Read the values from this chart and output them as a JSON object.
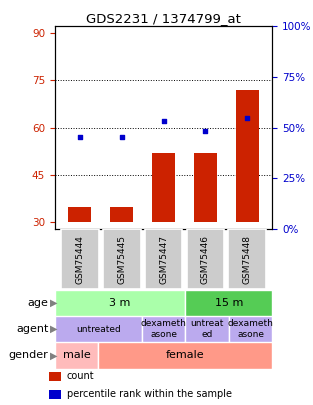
{
  "title": "GDS2231 / 1374799_at",
  "samples": [
    "GSM75444",
    "GSM75445",
    "GSM75447",
    "GSM75446",
    "GSM75448"
  ],
  "bar_values": [
    35,
    35,
    52,
    52,
    72
  ],
  "bar_bottom": 30,
  "dot_values": [
    57,
    57,
    62,
    59,
    63
  ],
  "ylim_left": [
    28,
    92
  ],
  "ylim_right": [
    0,
    100
  ],
  "yticks_left": [
    30,
    45,
    60,
    75,
    90
  ],
  "yticks_right": [
    0,
    25,
    50,
    75,
    100
  ],
  "ytick_labels_right": [
    "0%",
    "25%",
    "50%",
    "75%",
    "100%"
  ],
  "hlines": [
    45,
    60,
    75
  ],
  "bar_color": "#cc2200",
  "dot_color": "#0000cc",
  "bar_width": 0.55,
  "age_labels": [
    [
      "3 m",
      0,
      3
    ],
    [
      "15 m",
      3,
      5
    ]
  ],
  "age_colors": [
    "#aaffaa",
    "#55cc55"
  ],
  "agent_labels": [
    [
      "untreated",
      0,
      2
    ],
    [
      "dexameth\nasone",
      2,
      3
    ],
    [
      "untreat\ned",
      3,
      4
    ],
    [
      "dexameth\nasone",
      4,
      5
    ]
  ],
  "agent_color": "#bbaaee",
  "gender_labels": [
    [
      "male",
      0,
      1
    ],
    [
      "female",
      1,
      5
    ]
  ],
  "gender_colors": [
    "#ffbbbb",
    "#ff9988"
  ],
  "tick_label_color_left": "#cc2200",
  "tick_label_color_right": "#0000cc",
  "legend_items": [
    "count",
    "percentile rank within the sample"
  ],
  "legend_colors": [
    "#cc2200",
    "#0000cc"
  ],
  "background_color": "#ffffff",
  "sample_box_color": "#cccccc"
}
